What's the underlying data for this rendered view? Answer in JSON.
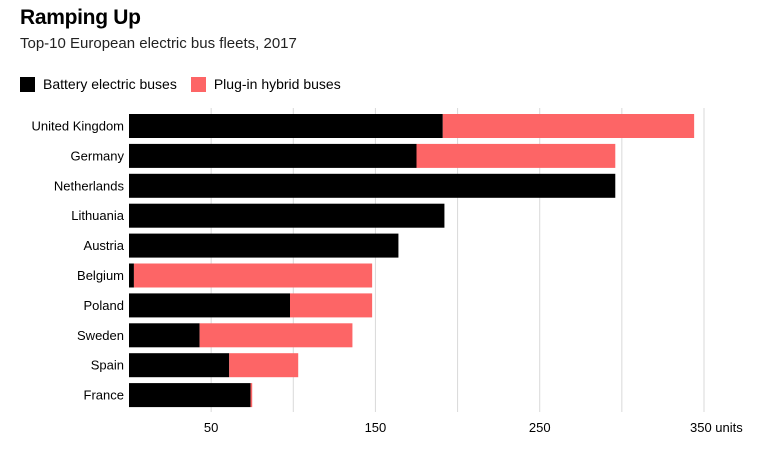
{
  "title": "Ramping Up",
  "subtitle": "Top-10 European electric bus fleets, 2017",
  "colors": {
    "battery": "#000000",
    "hybrid": "#fd6566",
    "grid": "#d9d9d9"
  },
  "chart_data": {
    "type": "bar",
    "orientation": "horizontal",
    "stacked": true,
    "categories": [
      "United Kingdom",
      "Germany",
      "Netherlands",
      "Lithuania",
      "Austria",
      "Belgium",
      "Poland",
      "Sweden",
      "Spain",
      "France"
    ],
    "series": [
      {
        "name": "Battery electric buses",
        "values": [
          191,
          175,
          296,
          192,
          164,
          3,
          98,
          43,
          61,
          74
        ]
      },
      {
        "name": "Plug-in hybrid buses",
        "values": [
          153,
          121,
          0,
          0,
          0,
          145,
          50,
          93,
          42,
          1
        ]
      }
    ],
    "xlim": [
      0,
      350
    ],
    "xticks": [
      50,
      150,
      250,
      350
    ],
    "xtick_labels": [
      "50",
      "150",
      "250",
      "350 units"
    ],
    "gridlines": [
      100,
      200,
      300
    ],
    "grid": true,
    "legend": "top-left"
  }
}
